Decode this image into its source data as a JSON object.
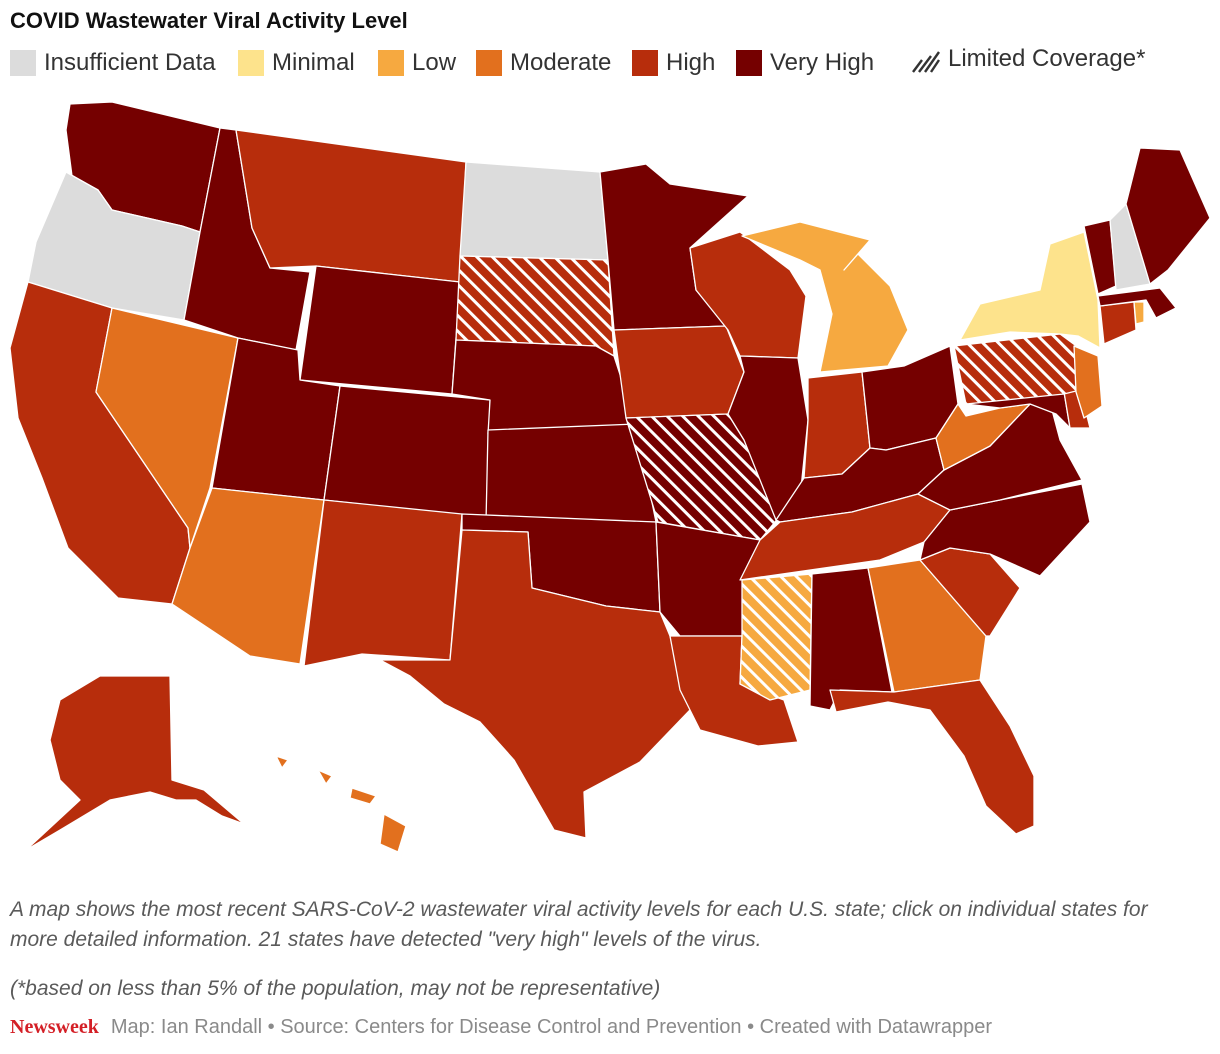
{
  "title": "COVID Wastewater Viral Activity Level",
  "legend": [
    {
      "label": "Insufficient Data",
      "color": "#dcdcdc",
      "key": "insufficient"
    },
    {
      "label": "Minimal",
      "color": "#fde38c",
      "key": "minimal"
    },
    {
      "label": "Low",
      "color": "#f6a940",
      "key": "low"
    },
    {
      "label": "Moderate",
      "color": "#e2701e",
      "key": "moderate"
    },
    {
      "label": "High",
      "color": "#b72d0c",
      "key": "high"
    },
    {
      "label": "Very High",
      "color": "#750000",
      "key": "veryhigh"
    }
  ],
  "limited_label": "Limited Coverage*",
  "states": [
    {
      "abbr": "WA",
      "level": "veryhigh"
    },
    {
      "abbr": "OR",
      "level": "insufficient"
    },
    {
      "abbr": "CA",
      "level": "high"
    },
    {
      "abbr": "NV",
      "level": "moderate"
    },
    {
      "abbr": "ID",
      "level": "veryhigh"
    },
    {
      "abbr": "MT",
      "level": "high"
    },
    {
      "abbr": "WY",
      "level": "veryhigh"
    },
    {
      "abbr": "UT",
      "level": "veryhigh"
    },
    {
      "abbr": "AZ",
      "level": "moderate"
    },
    {
      "abbr": "CO",
      "level": "veryhigh"
    },
    {
      "abbr": "NM",
      "level": "high"
    },
    {
      "abbr": "ND",
      "level": "insufficient"
    },
    {
      "abbr": "SD",
      "level": "high",
      "limited": true
    },
    {
      "abbr": "NE",
      "level": "veryhigh"
    },
    {
      "abbr": "KS",
      "level": "veryhigh"
    },
    {
      "abbr": "OK",
      "level": "veryhigh"
    },
    {
      "abbr": "TX",
      "level": "high"
    },
    {
      "abbr": "MN",
      "level": "veryhigh"
    },
    {
      "abbr": "IA",
      "level": "high"
    },
    {
      "abbr": "MO",
      "level": "veryhigh",
      "limited": true
    },
    {
      "abbr": "AR",
      "level": "veryhigh"
    },
    {
      "abbr": "LA",
      "level": "high"
    },
    {
      "abbr": "WI",
      "level": "high"
    },
    {
      "abbr": "IL",
      "level": "veryhigh"
    },
    {
      "abbr": "MI",
      "level": "low"
    },
    {
      "abbr": "IN",
      "level": "high"
    },
    {
      "abbr": "OH",
      "level": "veryhigh"
    },
    {
      "abbr": "KY",
      "level": "veryhigh"
    },
    {
      "abbr": "TN",
      "level": "high"
    },
    {
      "abbr": "MS",
      "level": "low",
      "limited": true
    },
    {
      "abbr": "AL",
      "level": "veryhigh"
    },
    {
      "abbr": "GA",
      "level": "moderate"
    },
    {
      "abbr": "FL",
      "level": "high"
    },
    {
      "abbr": "SC",
      "level": "high"
    },
    {
      "abbr": "NC",
      "level": "veryhigh"
    },
    {
      "abbr": "VA",
      "level": "veryhigh"
    },
    {
      "abbr": "WV",
      "level": "moderate"
    },
    {
      "abbr": "PA",
      "level": "high",
      "limited": true
    },
    {
      "abbr": "NY",
      "level": "minimal"
    },
    {
      "abbr": "VT",
      "level": "veryhigh"
    },
    {
      "abbr": "NH",
      "level": "insufficient"
    },
    {
      "abbr": "ME",
      "level": "veryhigh"
    },
    {
      "abbr": "MA",
      "level": "veryhigh"
    },
    {
      "abbr": "RI",
      "level": "low"
    },
    {
      "abbr": "CT",
      "level": "high"
    },
    {
      "abbr": "NJ",
      "level": "moderate"
    },
    {
      "abbr": "DE",
      "level": "high"
    },
    {
      "abbr": "MD",
      "level": "veryhigh"
    },
    {
      "abbr": "AK",
      "level": "high"
    },
    {
      "abbr": "HI",
      "level": "moderate"
    }
  ],
  "description": "A map shows the most recent SARS-CoV-2 wastewater viral activity levels for each U.S. state; click on individual states for more detailed information. 21 states have detected \"very high\" levels of the virus.",
  "note": "(*based on less than 5% of the population, may not be representative)",
  "footer": {
    "brand": "Newsweek",
    "credit": "Map: Ian Randall • Source: Centers for Disease Control and Prevention • Created with Datawrapper"
  }
}
